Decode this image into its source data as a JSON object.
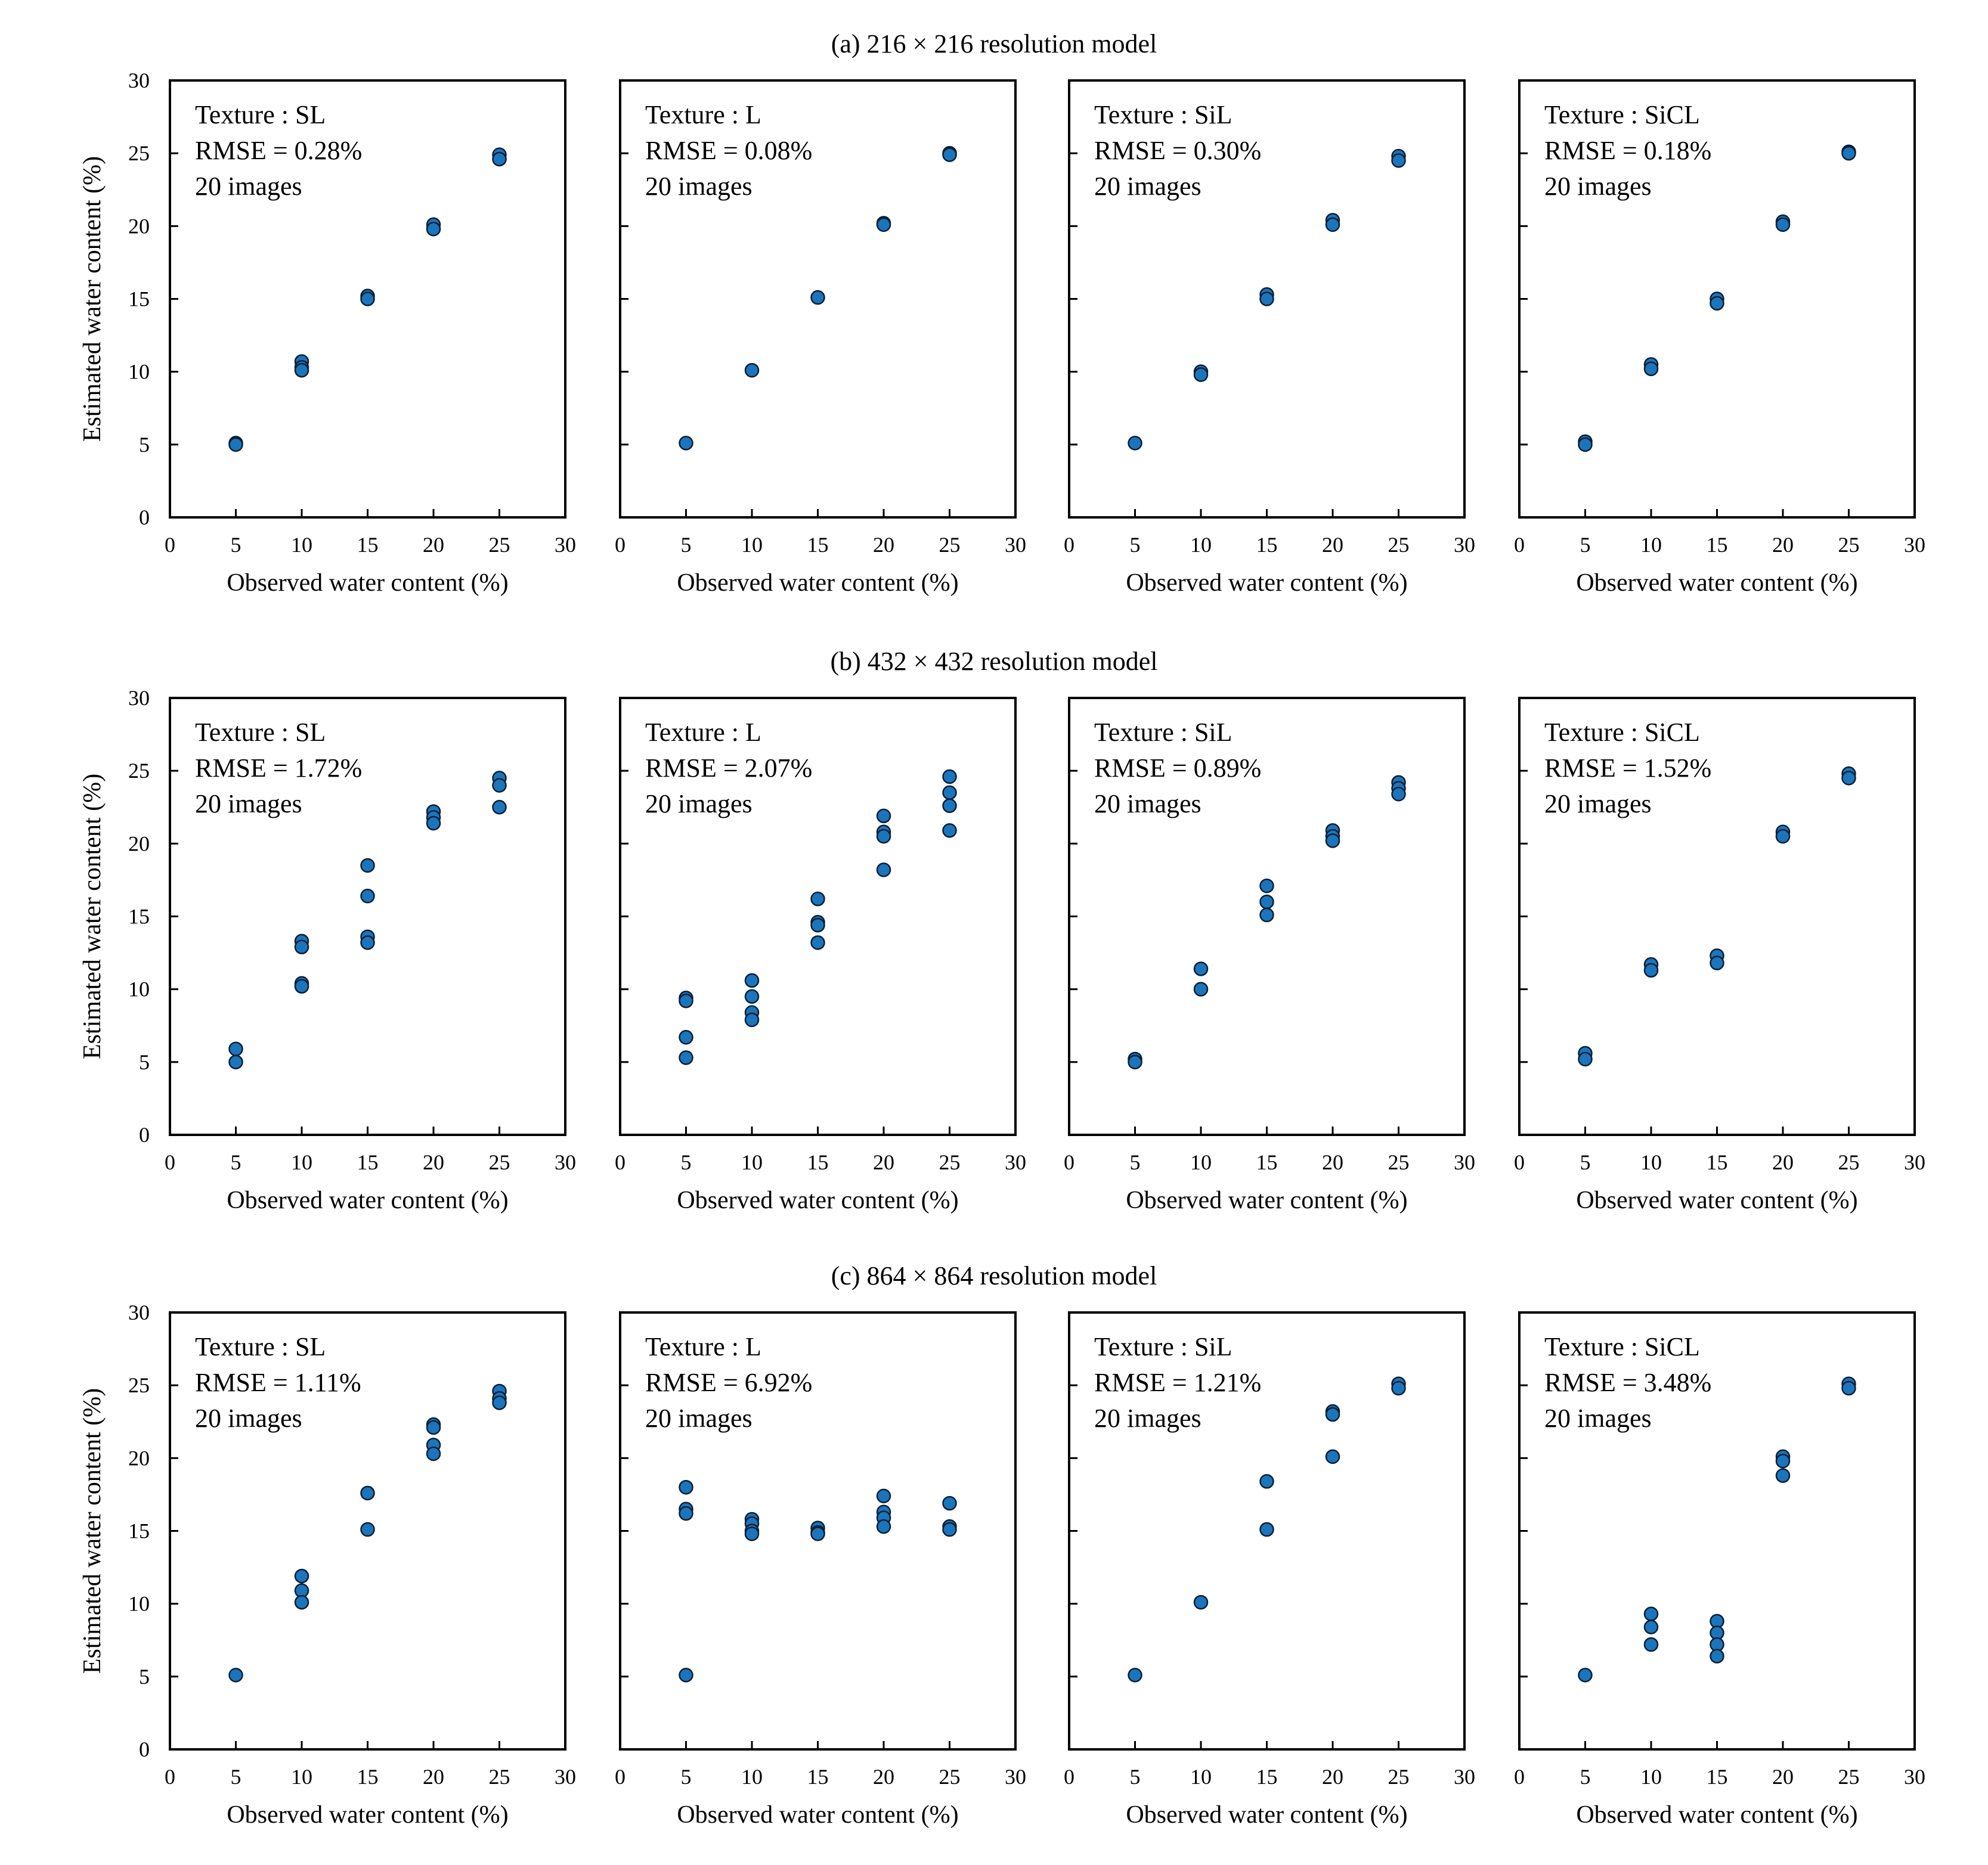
{
  "figure": {
    "marker_color": "#1b75bc",
    "marker_edge_color": "#0a1f33"
  },
  "chart_data": [
    {
      "type": "scatter",
      "row_title": "(a) 216 × 216 resolution model",
      "panels": [
        {
          "texture": "Texture : SL",
          "rmse": "RMSE =  0.28%",
          "images": "20 images",
          "xlabel": "Observed water content (%)",
          "ylabel": "Estimated water content (%)",
          "xlim": [
            0,
            30
          ],
          "ylim": [
            0,
            30
          ],
          "xticks": [
            "0",
            "5",
            "10",
            "15",
            "20",
            "25",
            "30"
          ],
          "yticks": [
            "0",
            "5",
            "10",
            "15",
            "20",
            "25",
            "30"
          ],
          "points": [
            [
              5,
              5.1
            ],
            [
              5,
              5.0
            ],
            [
              10,
              10.7
            ],
            [
              10,
              10.3
            ],
            [
              10,
              10.1
            ],
            [
              15,
              15.2
            ],
            [
              15,
              15.0
            ],
            [
              20,
              20.1
            ],
            [
              20,
              19.8
            ],
            [
              25,
              24.9
            ],
            [
              25,
              24.6
            ]
          ]
        },
        {
          "texture": "Texture : L",
          "rmse": "RMSE =  0.08%",
          "images": "20 images",
          "xlabel": "Observed water content (%)",
          "ylabel": "",
          "xlim": [
            0,
            30
          ],
          "ylim": [
            0,
            30
          ],
          "xticks": [
            "0",
            "5",
            "10",
            "15",
            "20",
            "25",
            "30"
          ],
          "yticks": [],
          "points": [
            [
              5,
              5.1
            ],
            [
              10,
              10.1
            ],
            [
              15,
              15.1
            ],
            [
              20,
              20.2
            ],
            [
              20,
              20.1
            ],
            [
              25,
              25.0
            ],
            [
              25,
              24.9
            ]
          ]
        },
        {
          "texture": "Texture : SiL",
          "rmse": "RMSE =  0.30%",
          "images": "20 images",
          "xlabel": "Observed water content (%)",
          "ylabel": "",
          "xlim": [
            0,
            30
          ],
          "ylim": [
            0,
            30
          ],
          "xticks": [
            "0",
            "5",
            "10",
            "15",
            "20",
            "25",
            "30"
          ],
          "yticks": [],
          "points": [
            [
              5,
              5.1
            ],
            [
              10,
              10.0
            ],
            [
              10,
              9.8
            ],
            [
              15,
              15.3
            ],
            [
              15,
              15.0
            ],
            [
              20,
              20.4
            ],
            [
              20,
              20.1
            ],
            [
              25,
              24.8
            ],
            [
              25,
              24.5
            ]
          ]
        },
        {
          "texture": "Texture : SiCL",
          "rmse": "RMSE =  0.18%",
          "images": "20 images",
          "xlabel": "Observed water content (%)",
          "ylabel": "",
          "xlim": [
            0,
            30
          ],
          "ylim": [
            0,
            30
          ],
          "xticks": [
            "0",
            "5",
            "10",
            "15",
            "20",
            "25",
            "30"
          ],
          "yticks": [],
          "points": [
            [
              5,
              5.2
            ],
            [
              5,
              5.0
            ],
            [
              10,
              10.5
            ],
            [
              10,
              10.2
            ],
            [
              15,
              15.0
            ],
            [
              15,
              14.7
            ],
            [
              20,
              20.3
            ],
            [
              20,
              20.1
            ],
            [
              25,
              25.1
            ],
            [
              25,
              25.0
            ]
          ]
        }
      ]
    },
    {
      "type": "scatter",
      "row_title": "(b) 432 × 432 resolution model",
      "panels": [
        {
          "texture": "Texture : SL",
          "rmse": "RMSE =  1.72%",
          "images": "20 images",
          "xlabel": "Observed water content (%)",
          "ylabel": "Estimated water content (%)",
          "xlim": [
            0,
            30
          ],
          "ylim": [
            0,
            30
          ],
          "xticks": [
            "0",
            "5",
            "10",
            "15",
            "20",
            "25",
            "30"
          ],
          "yticks": [
            "0",
            "5",
            "10",
            "15",
            "20",
            "25",
            "30"
          ],
          "points": [
            [
              5,
              5.9
            ],
            [
              5,
              5.0
            ],
            [
              10,
              13.3
            ],
            [
              10,
              12.9
            ],
            [
              10,
              10.4
            ],
            [
              10,
              10.2
            ],
            [
              15,
              18.5
            ],
            [
              15,
              16.4
            ],
            [
              15,
              13.6
            ],
            [
              15,
              13.2
            ],
            [
              20,
              22.2
            ],
            [
              20,
              21.8
            ],
            [
              20,
              21.4
            ],
            [
              25,
              24.5
            ],
            [
              25,
              24.0
            ],
            [
              25,
              22.5
            ]
          ]
        },
        {
          "texture": "Texture : L",
          "rmse": "RMSE =  2.07%",
          "images": "20 images",
          "xlabel": "Observed water content (%)",
          "ylabel": "",
          "xlim": [
            0,
            30
          ],
          "ylim": [
            0,
            30
          ],
          "xticks": [
            "0",
            "5",
            "10",
            "15",
            "20",
            "25",
            "30"
          ],
          "yticks": [],
          "points": [
            [
              5,
              9.4
            ],
            [
              5,
              9.2
            ],
            [
              5,
              6.7
            ],
            [
              5,
              5.3
            ],
            [
              10,
              10.6
            ],
            [
              10,
              9.5
            ],
            [
              10,
              8.4
            ],
            [
              10,
              7.9
            ],
            [
              15,
              16.2
            ],
            [
              15,
              14.6
            ],
            [
              15,
              14.4
            ],
            [
              15,
              13.2
            ],
            [
              20,
              21.9
            ],
            [
              20,
              20.8
            ],
            [
              20,
              20.5
            ],
            [
              20,
              18.2
            ],
            [
              25,
              24.6
            ],
            [
              25,
              23.5
            ],
            [
              25,
              22.6
            ],
            [
              25,
              20.9
            ]
          ]
        },
        {
          "texture": "Texture : SiL",
          "rmse": "RMSE =  0.89%",
          "images": "20 images",
          "xlabel": "Observed water content (%)",
          "ylabel": "",
          "xlim": [
            0,
            30
          ],
          "ylim": [
            0,
            30
          ],
          "xticks": [
            "0",
            "5",
            "10",
            "15",
            "20",
            "25",
            "30"
          ],
          "yticks": [],
          "points": [
            [
              5,
              5.2
            ],
            [
              5,
              5.0
            ],
            [
              10,
              11.4
            ],
            [
              10,
              10.0
            ],
            [
              15,
              17.1
            ],
            [
              15,
              16.0
            ],
            [
              15,
              15.1
            ],
            [
              20,
              20.9
            ],
            [
              20,
              20.5
            ],
            [
              20,
              20.2
            ],
            [
              25,
              24.2
            ],
            [
              25,
              23.8
            ],
            [
              25,
              23.4
            ]
          ]
        },
        {
          "texture": "Texture : SiCL",
          "rmse": "RMSE =  1.52%",
          "images": "20 images",
          "xlabel": "Observed water content (%)",
          "ylabel": "",
          "xlim": [
            0,
            30
          ],
          "ylim": [
            0,
            30
          ],
          "xticks": [
            "0",
            "5",
            "10",
            "15",
            "20",
            "25",
            "30"
          ],
          "yticks": [],
          "points": [
            [
              5,
              5.6
            ],
            [
              5,
              5.2
            ],
            [
              10,
              11.7
            ],
            [
              10,
              11.3
            ],
            [
              15,
              12.3
            ],
            [
              15,
              11.8
            ],
            [
              20,
              20.8
            ],
            [
              20,
              20.5
            ],
            [
              25,
              24.8
            ],
            [
              25,
              24.5
            ]
          ]
        }
      ]
    },
    {
      "type": "scatter",
      "row_title": "(c) 864 × 864 resolution model",
      "panels": [
        {
          "texture": "Texture : SL",
          "rmse": "RMSE =  1.11%",
          "images": "20 images",
          "xlabel": "Observed water content (%)",
          "ylabel": "Estimated water content (%)",
          "xlim": [
            0,
            30
          ],
          "ylim": [
            0,
            30
          ],
          "xticks": [
            "0",
            "5",
            "10",
            "15",
            "20",
            "25",
            "30"
          ],
          "yticks": [
            "0",
            "5",
            "10",
            "15",
            "20",
            "25",
            "30"
          ],
          "points": [
            [
              5,
              5.1
            ],
            [
              10,
              11.9
            ],
            [
              10,
              10.9
            ],
            [
              10,
              10.1
            ],
            [
              15,
              17.6
            ],
            [
              15,
              15.1
            ],
            [
              20,
              22.3
            ],
            [
              20,
              22.1
            ],
            [
              20,
              20.9
            ],
            [
              20,
              20.3
            ],
            [
              25,
              24.6
            ],
            [
              25,
              24.1
            ],
            [
              25,
              23.8
            ]
          ]
        },
        {
          "texture": "Texture : L",
          "rmse": "RMSE =  6.92%",
          "images": "20 images",
          "xlabel": "Observed water content (%)",
          "ylabel": "",
          "xlim": [
            0,
            30
          ],
          "ylim": [
            0,
            30
          ],
          "xticks": [
            "0",
            "5",
            "10",
            "15",
            "20",
            "25",
            "30"
          ],
          "yticks": [],
          "points": [
            [
              5,
              18.0
            ],
            [
              5,
              16.5
            ],
            [
              5,
              16.2
            ],
            [
              5,
              5.1
            ],
            [
              10,
              15.8
            ],
            [
              10,
              15.5
            ],
            [
              10,
              15.0
            ],
            [
              10,
              14.8
            ],
            [
              15,
              15.2
            ],
            [
              15,
              14.9
            ],
            [
              15,
              14.8
            ],
            [
              20,
              17.4
            ],
            [
              20,
              16.3
            ],
            [
              20,
              15.9
            ],
            [
              20,
              15.3
            ],
            [
              25,
              16.9
            ],
            [
              25,
              15.3
            ],
            [
              25,
              15.1
            ]
          ]
        },
        {
          "texture": "Texture : SiL",
          "rmse": "RMSE =  1.21%",
          "images": "20 images",
          "xlabel": "Observed water content (%)",
          "ylabel": "",
          "xlim": [
            0,
            30
          ],
          "ylim": [
            0,
            30
          ],
          "xticks": [
            "0",
            "5",
            "10",
            "15",
            "20",
            "25",
            "30"
          ],
          "yticks": [],
          "points": [
            [
              5,
              5.1
            ],
            [
              10,
              10.1
            ],
            [
              15,
              18.4
            ],
            [
              15,
              15.1
            ],
            [
              20,
              23.2
            ],
            [
              20,
              23.0
            ],
            [
              20,
              20.1
            ],
            [
              25,
              25.1
            ],
            [
              25,
              24.8
            ]
          ]
        },
        {
          "texture": "Texture : SiCL",
          "rmse": "RMSE =  3.48%",
          "images": "20 images",
          "xlabel": "Observed water content (%)",
          "ylabel": "",
          "xlim": [
            0,
            30
          ],
          "ylim": [
            0,
            30
          ],
          "xticks": [
            "0",
            "5",
            "10",
            "15",
            "20",
            "25",
            "30"
          ],
          "yticks": [],
          "points": [
            [
              5,
              5.1
            ],
            [
              10,
              9.3
            ],
            [
              10,
              8.4
            ],
            [
              10,
              7.2
            ],
            [
              15,
              8.8
            ],
            [
              15,
              8.0
            ],
            [
              15,
              7.2
            ],
            [
              15,
              6.4
            ],
            [
              20,
              20.1
            ],
            [
              20,
              19.8
            ],
            [
              20,
              18.8
            ],
            [
              25,
              25.1
            ],
            [
              25,
              24.8
            ]
          ]
        }
      ]
    }
  ]
}
